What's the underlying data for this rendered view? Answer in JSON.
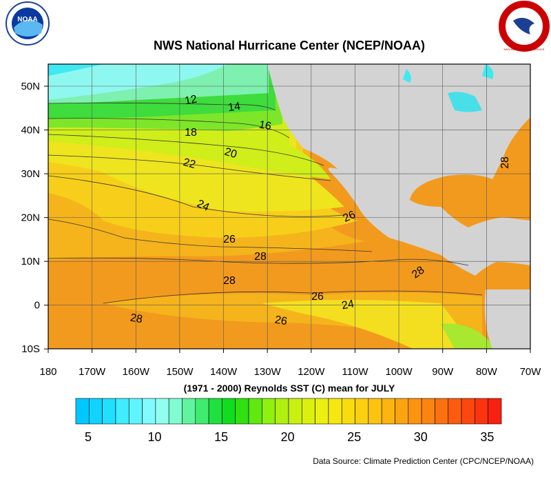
{
  "header": {
    "title": "NWS National Hurricane Center (NCEP/NOAA)",
    "noaa_logo": "NOAA",
    "nws_logo": "NATIONAL WEATHER SERVICE"
  },
  "map": {
    "lon_labels": [
      "180",
      "170W",
      "160W",
      "150W",
      "140W",
      "130W",
      "120W",
      "110W",
      "100W",
      "90W",
      "80W",
      "70W"
    ],
    "lat_labels": [
      "50N",
      "40N",
      "30N",
      "20N",
      "10N",
      "0",
      "10S"
    ],
    "contour_labels": [
      "12",
      "14",
      "16",
      "18",
      "20",
      "22",
      "24",
      "26",
      "26",
      "28",
      "28",
      "28",
      "26",
      "24",
      "28",
      "26",
      "28"
    ]
  },
  "subtitle": "(1971 - 2000) Reynolds SST (C) mean for JULY",
  "colorbar": {
    "tick_labels": [
      "5",
      "10",
      "15",
      "20",
      "25",
      "30",
      "35"
    ]
  },
  "footer": {
    "source": "Data Source: Climate Prediction Center (CPC/NCEP/NOAA)"
  }
}
